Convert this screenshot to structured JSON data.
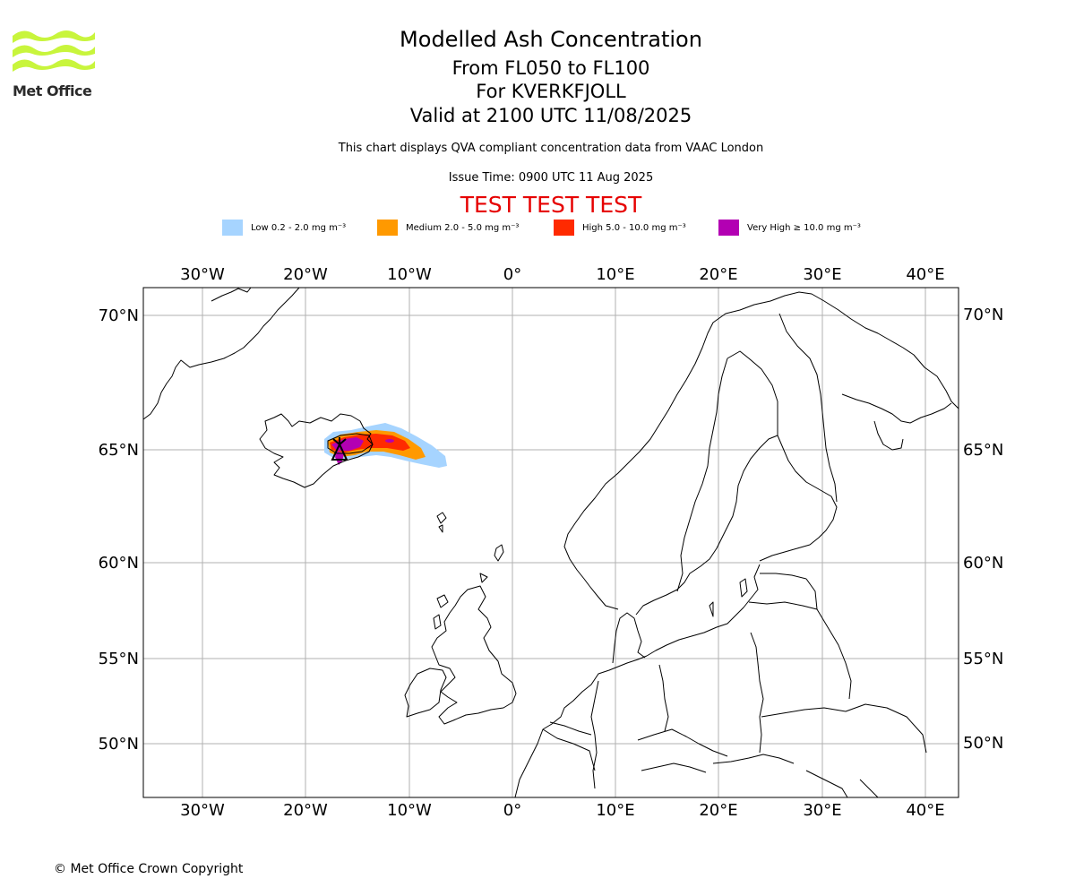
{
  "header": {
    "title": "Modelled Ash Concentration",
    "levels": "From FL050 to FL100",
    "volcano": "For KVERKFJOLL",
    "valid": "Valid at 2100 UTC 11/08/2025",
    "disclaimer": "This chart displays QVA compliant concentration data from VAAC London",
    "issue_time": "Issue Time: 0900 UTC 11 Aug 2025",
    "test_banner": "TEST TEST TEST"
  },
  "logo": {
    "text": "Met Office",
    "color": "#c8f53c"
  },
  "legend": [
    {
      "label": "Low 0.2 - 2.0 mg m⁻³",
      "color": "#a6d4ff"
    },
    {
      "label": "Medium 2.0 - 5.0 mg m⁻³",
      "color": "#ff9900"
    },
    {
      "label": "High 5.0 - 10.0 mg m⁻³",
      "color": "#ff2a00"
    },
    {
      "label": "Very High  ≥  10.0 mg m⁻³",
      "color": "#b300b3"
    }
  ],
  "map": {
    "lon_labels": [
      "30°W",
      "20°W",
      "10°W",
      "0°",
      "10°E",
      "20°E",
      "30°E",
      "40°E"
    ],
    "lat_labels": [
      "70°N",
      "65°N",
      "60°N",
      "55°N",
      "50°N"
    ],
    "volcano_marker": "volcano-icon"
  },
  "footer": {
    "copyright": "© Met Office Crown Copyright"
  }
}
